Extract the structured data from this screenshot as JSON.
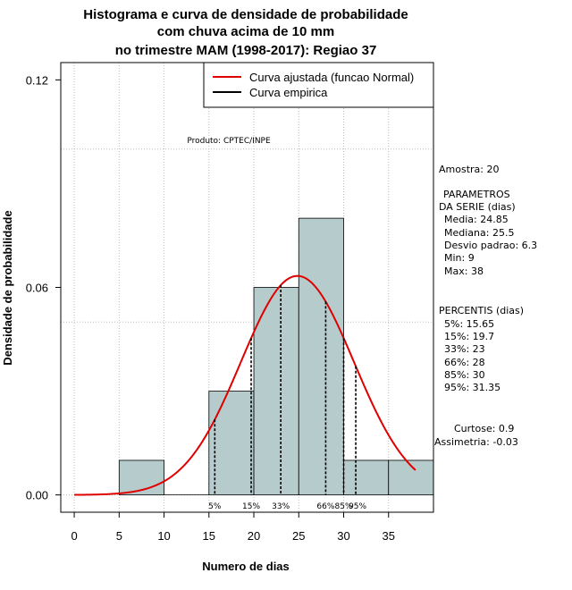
{
  "chart_data": {
    "type": "histogram",
    "title_lines": [
      "Histograma e curva de densidade de probabilidade",
      "com chuva acima de 10 mm",
      "no trimestre MAM (1998-2017): Regiao 37"
    ],
    "xlabel": "Numero de dias",
    "ylabel": "Densidade de probabilidade",
    "xlim": [
      -1.5,
      40
    ],
    "ylim": [
      -0.005,
      0.125
    ],
    "x_ticks": [
      0,
      5,
      10,
      15,
      20,
      25,
      30,
      35
    ],
    "y_ticks": [
      0.0,
      0.06,
      0.12
    ],
    "y_tick_labels": [
      "0.00",
      "0.06",
      "0.12"
    ],
    "y_grid": [
      0.0,
      0.05,
      0.1
    ],
    "bins": [
      {
        "x0": 5,
        "x1": 10,
        "density": 0.01
      },
      {
        "x0": 10,
        "x1": 15,
        "density": 0.0
      },
      {
        "x0": 15,
        "x1": 20,
        "density": 0.03
      },
      {
        "x0": 20,
        "x1": 25,
        "density": 0.06
      },
      {
        "x0": 25,
        "x1": 30,
        "density": 0.08
      },
      {
        "x0": 30,
        "x1": 35,
        "density": 0.01
      },
      {
        "x0": 35,
        "x1": 40,
        "density": 0.01
      }
    ],
    "normal_curve": {
      "mean": 24.85,
      "sd": 6.3,
      "x_from": 0,
      "x_to": 38
    },
    "percentile_lines": [
      {
        "label": "5%",
        "value": 15.65
      },
      {
        "label": "15%",
        "value": 19.7
      },
      {
        "label": "33%",
        "value": 23
      },
      {
        "label": "66%",
        "value": 28
      },
      {
        "label": "85%",
        "value": 30
      },
      {
        "label": "95%",
        "value": 31.35
      }
    ],
    "legend": [
      {
        "label": "Curva ajustada (funcao Normal)",
        "color": "#e00000"
      },
      {
        "label": "Curva empirica",
        "color": "#000000"
      }
    ],
    "credit": "Produto: CPTEC/INPE",
    "colors": {
      "bar_fill": "#b6cccc",
      "curve": "#e00000",
      "grid": "#bbbbbb"
    }
  },
  "stats_panel": {
    "amostra": "Amostra: 20",
    "param_title_1": "PARAMETROS",
    "param_title_2": "DA SERIE (dias)",
    "media": "Media: 24.85",
    "mediana": "Mediana: 25.5",
    "desvio": "Desvio padrao: 6.3",
    "min": "Min: 9",
    "max": "Max: 38",
    "perc_title": "PERCENTIS (dias)",
    "p5": "5%: 15.65",
    "p15": "15%: 19.7",
    "p33": "33%: 23",
    "p66": "66%: 28",
    "p85": "85%: 30",
    "p95": "95%: 31.35",
    "curtose": "Curtose: 0.9",
    "assimetria": "Assimetria: -0.03"
  }
}
